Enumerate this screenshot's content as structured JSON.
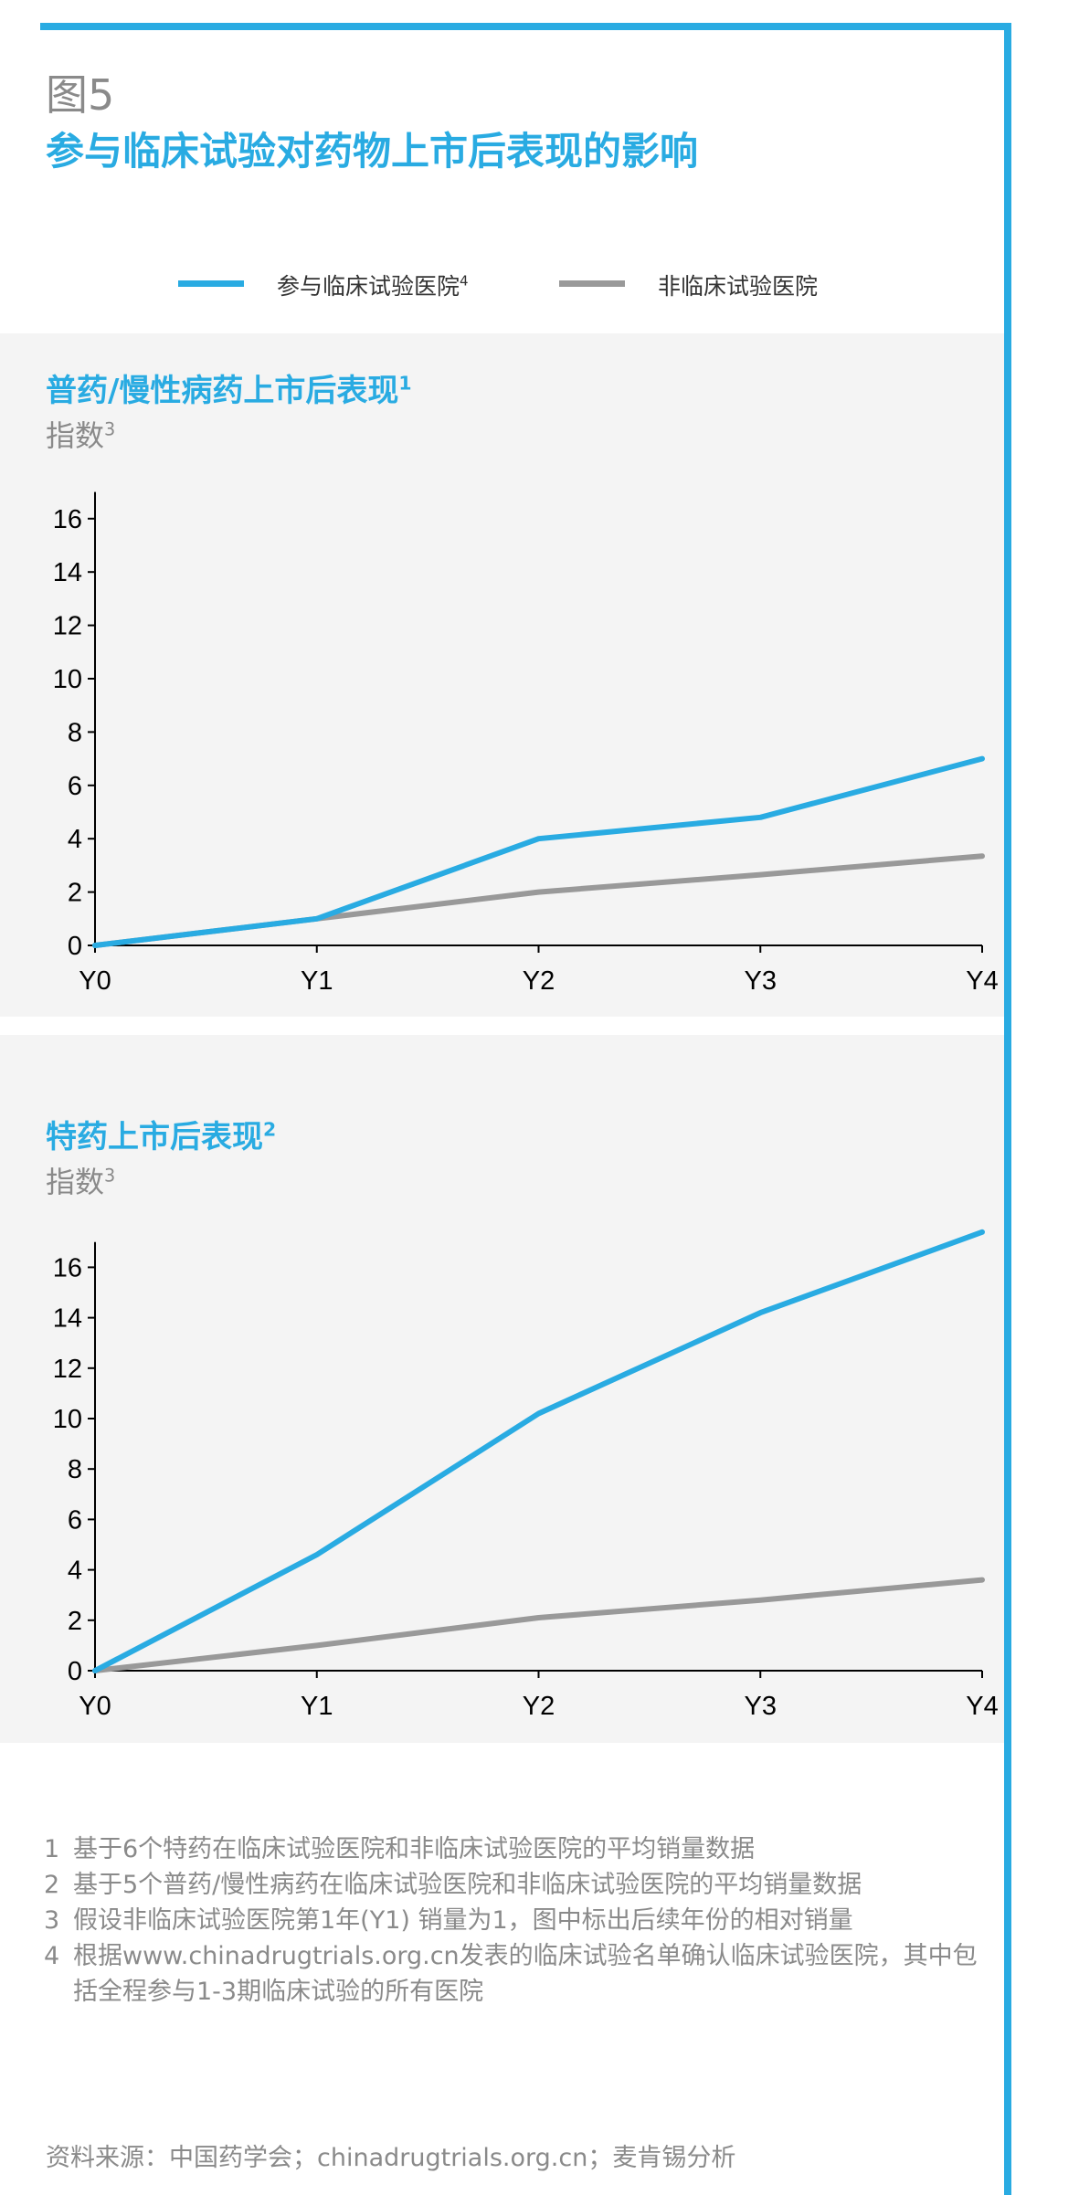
{
  "figure_label": "图5",
  "figure_title": "参与临床试验对药物上市后表现的影响",
  "legend": [
    {
      "label": "参与临床试验医院",
      "sup": "4",
      "color": "#29abe2"
    },
    {
      "label": "非临床试验医院",
      "sup": "",
      "color": "#999999"
    }
  ],
  "panels": [
    {
      "title": "普药/慢性病药上市后表现",
      "title_sup": "1",
      "subtitle": "指数",
      "subtitle_sup": "3"
    },
    {
      "title": "特药上市后表现",
      "title_sup": "2",
      "subtitle": "指数",
      "subtitle_sup": "3"
    }
  ],
  "chart_data": [
    {
      "type": "line",
      "title": "普药/慢性病药上市后表现",
      "ylabel": "指数",
      "categories": [
        "Y0",
        "Y1",
        "Y2",
        "Y3",
        "Y4"
      ],
      "ylim": [
        0,
        17
      ],
      "yticks": [
        0,
        2,
        4,
        6,
        8,
        10,
        12,
        14,
        16
      ],
      "series": [
        {
          "name": "参与临床试验医院",
          "color": "#29abe2",
          "values": [
            0,
            1,
            4,
            4.8,
            7
          ]
        },
        {
          "name": "非临床试验医院",
          "color": "#999999",
          "values": [
            0,
            1,
            2,
            2.65,
            3.35
          ]
        }
      ]
    },
    {
      "type": "line",
      "title": "特药上市后表现",
      "ylabel": "指数",
      "categories": [
        "Y0",
        "Y1",
        "Y2",
        "Y3",
        "Y4"
      ],
      "ylim": [
        0,
        17
      ],
      "yticks": [
        0,
        2,
        4,
        6,
        8,
        10,
        12,
        14,
        16
      ],
      "series": [
        {
          "name": "参与临床试验医院",
          "color": "#29abe2",
          "values": [
            0,
            4.6,
            10.2,
            14.2,
            17.4
          ]
        },
        {
          "name": "非临床试验医院",
          "color": "#999999",
          "values": [
            0,
            1,
            2.1,
            2.8,
            3.6
          ]
        }
      ]
    }
  ],
  "notes": [
    {
      "num": "1",
      "text": "基于6个特药在临床试验医院和非临床试验医院的平均销量数据"
    },
    {
      "num": "2",
      "text": "基于5个普药/慢性病药在临床试验医院和非临床试验医院的平均销量数据"
    },
    {
      "num": "3",
      "text": "假设非临床试验医院第1年(Y1) 销量为1，图中标出后续年份的相对销量"
    },
    {
      "num": "4",
      "text": "根据www.chinadrugtrials.org.cn发表的临床试验名单确认临床试验医院，其中包括全程参与1-3期临床试验的所有医院"
    }
  ],
  "source": "资料来源：中国药学会；chinadrugtrials.org.cn；麦肯锡分析"
}
